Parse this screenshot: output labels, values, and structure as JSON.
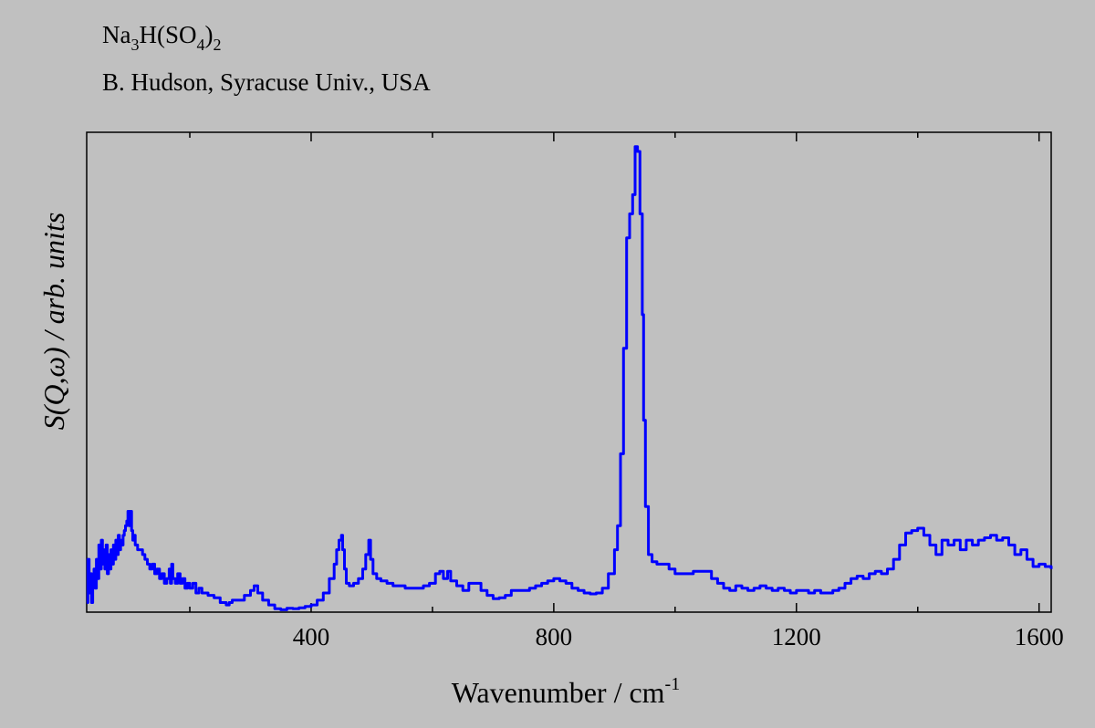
{
  "header": {
    "formula": {
      "parts": [
        {
          "text": "Na",
          "sub": false
        },
        {
          "text": "3",
          "sub": true
        },
        {
          "text": "H(SO",
          "sub": false
        },
        {
          "text": "4",
          "sub": true
        },
        {
          "text": ")",
          "sub": false
        },
        {
          "text": "2",
          "sub": true
        }
      ]
    },
    "author": "B. Hudson, Syracuse Univ., USA"
  },
  "chart_data": {
    "type": "line",
    "xlabel": "Wavenumber / cm",
    "xlabel_superscript": "-1",
    "ylabel": "S(Q,ω) / arb. units",
    "xlim": [
      30,
      1620
    ],
    "ylim": [
      0,
      1
    ],
    "xticks": [
      400,
      800,
      1200,
      1600
    ],
    "xtick_labels": [
      "400",
      "800",
      "1200",
      "1600"
    ],
    "y_tick_labels_shown": false,
    "grid": false,
    "line_color": "#0000ff",
    "series": [
      {
        "values_xy": [
          [
            30,
            0.02
          ],
          [
            32,
            0.11
          ],
          [
            34,
            0.04
          ],
          [
            36,
            0.08
          ],
          [
            38,
            0.02
          ],
          [
            40,
            0.06
          ],
          [
            42,
            0.09
          ],
          [
            44,
            0.05
          ],
          [
            46,
            0.11
          ],
          [
            48,
            0.07
          ],
          [
            50,
            0.14
          ],
          [
            52,
            0.09
          ],
          [
            54,
            0.15
          ],
          [
            56,
            0.1
          ],
          [
            58,
            0.13
          ],
          [
            60,
            0.09
          ],
          [
            62,
            0.14
          ],
          [
            64,
            0.08
          ],
          [
            66,
            0.12
          ],
          [
            68,
            0.09
          ],
          [
            70,
            0.13
          ],
          [
            72,
            0.1
          ],
          [
            74,
            0.14
          ],
          [
            76,
            0.11
          ],
          [
            78,
            0.15
          ],
          [
            80,
            0.12
          ],
          [
            82,
            0.16
          ],
          [
            84,
            0.13
          ],
          [
            86,
            0.15
          ],
          [
            88,
            0.14
          ],
          [
            90,
            0.16
          ],
          [
            92,
            0.17
          ],
          [
            94,
            0.18
          ],
          [
            96,
            0.19
          ],
          [
            98,
            0.21
          ],
          [
            100,
            0.18
          ],
          [
            102,
            0.21
          ],
          [
            104,
            0.17
          ],
          [
            106,
            0.15
          ],
          [
            108,
            0.16
          ],
          [
            110,
            0.14
          ],
          [
            114,
            0.13
          ],
          [
            118,
            0.13
          ],
          [
            122,
            0.12
          ],
          [
            126,
            0.11
          ],
          [
            130,
            0.1
          ],
          [
            134,
            0.09
          ],
          [
            138,
            0.1
          ],
          [
            142,
            0.08
          ],
          [
            146,
            0.09
          ],
          [
            150,
            0.07
          ],
          [
            154,
            0.08
          ],
          [
            158,
            0.06
          ],
          [
            162,
            0.07
          ],
          [
            166,
            0.09
          ],
          [
            168,
            0.06
          ],
          [
            170,
            0.1
          ],
          [
            172,
            0.07
          ],
          [
            176,
            0.06
          ],
          [
            180,
            0.08
          ],
          [
            184,
            0.06
          ],
          [
            188,
            0.07
          ],
          [
            192,
            0.05
          ],
          [
            196,
            0.06
          ],
          [
            200,
            0.05
          ],
          [
            205,
            0.06
          ],
          [
            210,
            0.04
          ],
          [
            215,
            0.05
          ],
          [
            220,
            0.04
          ],
          [
            230,
            0.035
          ],
          [
            240,
            0.03
          ],
          [
            250,
            0.02
          ],
          [
            260,
            0.015
          ],
          [
            265,
            0.02
          ],
          [
            270,
            0.025
          ],
          [
            280,
            0.025
          ],
          [
            290,
            0.035
          ],
          [
            300,
            0.045
          ],
          [
            306,
            0.055
          ],
          [
            312,
            0.04
          ],
          [
            320,
            0.025
          ],
          [
            330,
            0.015
          ],
          [
            340,
            0.007
          ],
          [
            350,
            0.005
          ],
          [
            360,
            0.008
          ],
          [
            370,
            0.007
          ],
          [
            380,
            0.009
          ],
          [
            390,
            0.012
          ],
          [
            400,
            0.015
          ],
          [
            410,
            0.025
          ],
          [
            420,
            0.04
          ],
          [
            430,
            0.07
          ],
          [
            438,
            0.1
          ],
          [
            442,
            0.13
          ],
          [
            446,
            0.15
          ],
          [
            450,
            0.16
          ],
          [
            452,
            0.13
          ],
          [
            455,
            0.09
          ],
          [
            458,
            0.06
          ],
          [
            463,
            0.055
          ],
          [
            470,
            0.06
          ],
          [
            478,
            0.07
          ],
          [
            485,
            0.09
          ],
          [
            490,
            0.12
          ],
          [
            495,
            0.15
          ],
          [
            498,
            0.11
          ],
          [
            502,
            0.08
          ],
          [
            508,
            0.07
          ],
          [
            515,
            0.065
          ],
          [
            525,
            0.06
          ],
          [
            535,
            0.055
          ],
          [
            545,
            0.055
          ],
          [
            555,
            0.05
          ],
          [
            565,
            0.05
          ],
          [
            575,
            0.05
          ],
          [
            585,
            0.055
          ],
          [
            595,
            0.06
          ],
          [
            605,
            0.08
          ],
          [
            612,
            0.085
          ],
          [
            618,
            0.07
          ],
          [
            625,
            0.085
          ],
          [
            630,
            0.065
          ],
          [
            640,
            0.055
          ],
          [
            650,
            0.045
          ],
          [
            660,
            0.06
          ],
          [
            670,
            0.06
          ],
          [
            680,
            0.045
          ],
          [
            690,
            0.035
          ],
          [
            700,
            0.028
          ],
          [
            710,
            0.03
          ],
          [
            720,
            0.035
          ],
          [
            730,
            0.045
          ],
          [
            740,
            0.045
          ],
          [
            750,
            0.045
          ],
          [
            760,
            0.05
          ],
          [
            770,
            0.055
          ],
          [
            780,
            0.06
          ],
          [
            790,
            0.065
          ],
          [
            800,
            0.07
          ],
          [
            810,
            0.065
          ],
          [
            820,
            0.06
          ],
          [
            830,
            0.05
          ],
          [
            840,
            0.045
          ],
          [
            850,
            0.04
          ],
          [
            860,
            0.038
          ],
          [
            870,
            0.04
          ],
          [
            880,
            0.05
          ],
          [
            890,
            0.08
          ],
          [
            900,
            0.13
          ],
          [
            905,
            0.18
          ],
          [
            910,
            0.33
          ],
          [
            915,
            0.55
          ],
          [
            920,
            0.78
          ],
          [
            925,
            0.83
          ],
          [
            930,
            0.87
          ],
          [
            934,
            0.97
          ],
          [
            938,
            0.96
          ],
          [
            942,
            0.83
          ],
          [
            946,
            0.62
          ],
          [
            948,
            0.4
          ],
          [
            951,
            0.22
          ],
          [
            956,
            0.12
          ],
          [
            962,
            0.105
          ],
          [
            970,
            0.1
          ],
          [
            980,
            0.1
          ],
          [
            990,
            0.09
          ],
          [
            1000,
            0.08
          ],
          [
            1010,
            0.08
          ],
          [
            1020,
            0.08
          ],
          [
            1030,
            0.085
          ],
          [
            1040,
            0.085
          ],
          [
            1050,
            0.085
          ],
          [
            1060,
            0.07
          ],
          [
            1070,
            0.06
          ],
          [
            1080,
            0.05
          ],
          [
            1090,
            0.045
          ],
          [
            1100,
            0.055
          ],
          [
            1110,
            0.05
          ],
          [
            1120,
            0.045
          ],
          [
            1130,
            0.05
          ],
          [
            1140,
            0.055
          ],
          [
            1150,
            0.05
          ],
          [
            1160,
            0.045
          ],
          [
            1170,
            0.05
          ],
          [
            1180,
            0.045
          ],
          [
            1190,
            0.04
          ],
          [
            1200,
            0.045
          ],
          [
            1210,
            0.045
          ],
          [
            1220,
            0.04
          ],
          [
            1230,
            0.045
          ],
          [
            1240,
            0.04
          ],
          [
            1250,
            0.04
          ],
          [
            1260,
            0.045
          ],
          [
            1270,
            0.05
          ],
          [
            1280,
            0.06
          ],
          [
            1290,
            0.07
          ],
          [
            1300,
            0.075
          ],
          [
            1310,
            0.07
          ],
          [
            1320,
            0.08
          ],
          [
            1330,
            0.085
          ],
          [
            1340,
            0.08
          ],
          [
            1350,
            0.09
          ],
          [
            1360,
            0.11
          ],
          [
            1370,
            0.14
          ],
          [
            1380,
            0.165
          ],
          [
            1390,
            0.17
          ],
          [
            1400,
            0.175
          ],
          [
            1410,
            0.16
          ],
          [
            1420,
            0.14
          ],
          [
            1430,
            0.12
          ],
          [
            1440,
            0.15
          ],
          [
            1450,
            0.14
          ],
          [
            1460,
            0.15
          ],
          [
            1470,
            0.13
          ],
          [
            1480,
            0.15
          ],
          [
            1490,
            0.14
          ],
          [
            1500,
            0.15
          ],
          [
            1510,
            0.155
          ],
          [
            1520,
            0.16
          ],
          [
            1530,
            0.15
          ],
          [
            1540,
            0.155
          ],
          [
            1550,
            0.14
          ],
          [
            1560,
            0.12
          ],
          [
            1570,
            0.13
          ],
          [
            1580,
            0.11
          ],
          [
            1590,
            0.095
          ],
          [
            1600,
            0.1
          ],
          [
            1610,
            0.095
          ],
          [
            1620,
            0.09
          ]
        ]
      }
    ]
  }
}
